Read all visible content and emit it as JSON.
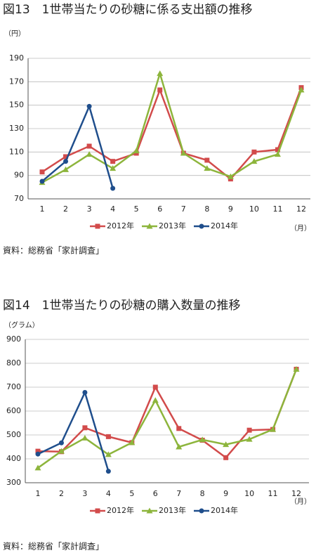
{
  "chart_data": [
    {
      "type": "line",
      "title": "図13　1世帯当たりの砂糖に係る支出額の推移",
      "y_label": "（円）",
      "x_label": "（月）",
      "source": "資料：総務省「家計調査」",
      "categories": [
        "1",
        "2",
        "3",
        "4",
        "5",
        "6",
        "7",
        "8",
        "9",
        "10",
        "11",
        "12"
      ],
      "ylim": [
        70,
        190
      ],
      "yticks": [
        70,
        90,
        110,
        130,
        150,
        170,
        190
      ],
      "grid": true,
      "series": [
        {
          "name": "2012年",
          "color": "#d24b4b",
          "marker": "square",
          "values": [
            93,
            106,
            115,
            102,
            109,
            163,
            109,
            103,
            87,
            110,
            112,
            165
          ]
        },
        {
          "name": "2013年",
          "color": "#8db53c",
          "marker": "triangle",
          "values": [
            84,
            95,
            108,
            96,
            111,
            177,
            109,
            96,
            89,
            102,
            108,
            163
          ]
        },
        {
          "name": "2014年",
          "color": "#1f4e8c",
          "marker": "circle",
          "values": [
            85,
            102,
            149,
            79,
            null,
            null,
            null,
            null,
            null,
            null,
            null,
            null
          ]
        }
      ]
    },
    {
      "type": "line",
      "title": "図14　1世帯当たりの砂糖の購入数量の推移",
      "y_label": "（グラム）",
      "x_label": "（月）",
      "source": "資料：総務省「家計調査」",
      "categories": [
        "1",
        "2",
        "3",
        "4",
        "5",
        "6",
        "7",
        "8",
        "9",
        "10",
        "11",
        "12"
      ],
      "ylim": [
        300,
        900
      ],
      "yticks": [
        300,
        400,
        500,
        600,
        700,
        800,
        900
      ],
      "grid": true,
      "series": [
        {
          "name": "2012年",
          "color": "#d24b4b",
          "marker": "square",
          "values": [
            432,
            430,
            530,
            493,
            468,
            700,
            527,
            478,
            405,
            520,
            523,
            775
          ]
        },
        {
          "name": "2013年",
          "color": "#8db53c",
          "marker": "triangle",
          "values": [
            362,
            432,
            487,
            418,
            468,
            645,
            450,
            480,
            460,
            482,
            523,
            775
          ]
        },
        {
          "name": "2014年",
          "color": "#1f4e8c",
          "marker": "circle",
          "values": [
            420,
            467,
            678,
            348,
            null,
            null,
            null,
            null,
            null,
            null,
            null,
            null
          ]
        }
      ]
    }
  ]
}
